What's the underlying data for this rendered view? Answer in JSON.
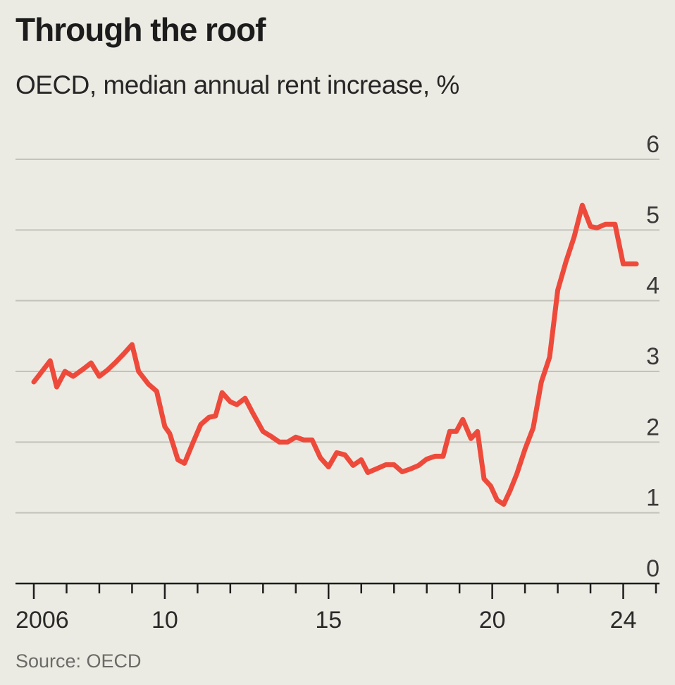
{
  "chart_data": {
    "type": "line",
    "title": "Through the roof",
    "subtitle": "OECD, median annual rent increase, %",
    "source": "Source: OECD",
    "xlabel": "",
    "ylabel": "",
    "ylim": [
      0,
      6
    ],
    "yticks": [
      "0",
      "1",
      "2",
      "3",
      "4",
      "5",
      "6"
    ],
    "xlim": [
      2006,
      2025
    ],
    "xticks": [
      {
        "value": 2006,
        "label": "2006"
      },
      {
        "value": 2010,
        "label": "10"
      },
      {
        "value": 2015,
        "label": "15"
      },
      {
        "value": 2020,
        "label": "20"
      },
      {
        "value": 2024,
        "label": "24"
      }
    ],
    "minor_ticks": [
      2007,
      2008,
      2009,
      2011,
      2012,
      2013,
      2014,
      2016,
      2017,
      2018,
      2019,
      2021,
      2022,
      2023,
      2025
    ],
    "grid": true,
    "series": [
      {
        "name": "Median annual rent increase",
        "color": "#ee4a3b",
        "x": [
          2006.0,
          2006.25,
          2006.5,
          2006.7,
          2006.95,
          2007.2,
          2007.5,
          2007.75,
          2008.0,
          2008.25,
          2008.5,
          2008.75,
          2009.0,
          2009.2,
          2009.5,
          2009.75,
          2010.0,
          2010.15,
          2010.4,
          2010.6,
          2010.85,
          2011.1,
          2011.35,
          2011.55,
          2011.75,
          2012.0,
          2012.2,
          2012.45,
          2012.7,
          2013.0,
          2013.25,
          2013.5,
          2013.75,
          2014.0,
          2014.25,
          2014.5,
          2014.75,
          2015.0,
          2015.25,
          2015.5,
          2015.75,
          2016.0,
          2016.2,
          2016.45,
          2016.75,
          2017.0,
          2017.25,
          2017.5,
          2017.75,
          2018.0,
          2018.25,
          2018.5,
          2018.7,
          2018.9,
          2019.1,
          2019.35,
          2019.55,
          2019.75,
          2019.95,
          2020.15,
          2020.35,
          2020.55,
          2020.75,
          2021.0,
          2021.25,
          2021.5,
          2021.75,
          2022.0,
          2022.25,
          2022.5,
          2022.75,
          2023.0,
          2023.2,
          2023.45,
          2023.75,
          2024.0,
          2024.25,
          2024.4
        ],
        "values": [
          2.85,
          3.0,
          3.15,
          2.78,
          3.0,
          2.93,
          3.03,
          3.12,
          2.93,
          3.02,
          3.13,
          3.25,
          3.38,
          3.0,
          2.82,
          2.72,
          2.22,
          2.12,
          1.75,
          1.7,
          1.98,
          2.25,
          2.35,
          2.37,
          2.7,
          2.57,
          2.53,
          2.62,
          2.4,
          2.15,
          2.08,
          2.0,
          2.0,
          2.07,
          2.03,
          2.03,
          1.78,
          1.65,
          1.85,
          1.82,
          1.67,
          1.75,
          1.57,
          1.62,
          1.68,
          1.68,
          1.58,
          1.62,
          1.67,
          1.76,
          1.8,
          1.8,
          2.15,
          2.15,
          2.32,
          2.05,
          2.15,
          1.48,
          1.38,
          1.18,
          1.12,
          1.32,
          1.55,
          1.9,
          2.2,
          2.85,
          3.2,
          4.15,
          4.55,
          4.9,
          5.35,
          5.05,
          5.03,
          5.08,
          5.08,
          4.52,
          4.52,
          4.52
        ]
      }
    ]
  }
}
